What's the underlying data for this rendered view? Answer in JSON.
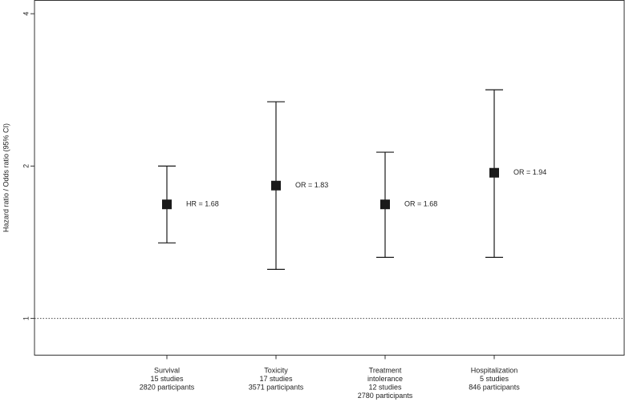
{
  "chart_data": {
    "type": "errorbar",
    "y_label": "Hazard ratio / Odds ratio (95% CI)",
    "categories": [
      [
        "Survival",
        "15 studies",
        "2820 participants"
      ],
      [
        "Toxicity",
        "17 studies",
        "3571 participants"
      ],
      [
        "Treatment",
        "intolerance",
        "12 studies",
        "2780 participants"
      ],
      [
        "Hospitalization",
        "5 studies",
        "846 participants"
      ]
    ],
    "values": [
      1.68,
      1.83,
      1.68,
      1.94
    ],
    "value_labels": [
      "HR = 1.68",
      "OR = 1.83",
      "OR = 1.68",
      "OR = 1.94"
    ],
    "lower": [
      1.41,
      1.25,
      1.32,
      1.32
    ],
    "upper": [
      2.0,
      2.68,
      2.13,
      2.83
    ],
    "color": "#1a1a1a",
    "y_log": true,
    "ylim": [
      0.846,
      4.25
    ],
    "yticks": [
      1,
      2,
      4
    ],
    "reference_line": 1
  }
}
